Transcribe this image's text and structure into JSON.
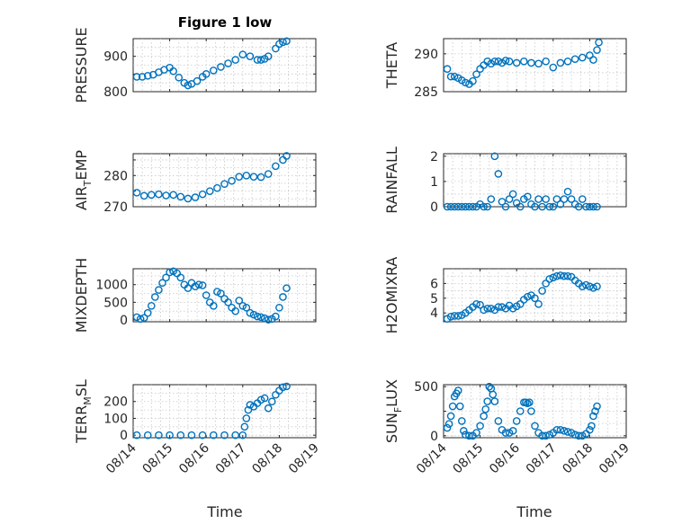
{
  "figure": {
    "title": "Figure 1 low",
    "xlabel": "Time"
  },
  "colors": {
    "marker": "#0072bd",
    "axes": "#262626",
    "grid": "#c8c8c8",
    "background": "#ffffff"
  },
  "x_axis": {
    "ticks": [
      "08/14",
      "08/15",
      "08/16",
      "08/17",
      "08/18",
      "08/19"
    ]
  },
  "chart_data": [
    {
      "type": "scatter",
      "ylabel": "PRESSURE",
      "ylim": [
        800,
        950
      ],
      "yticks": [
        800,
        850,
        900
      ],
      "ytick_labels": [
        "800",
        "",
        "900"
      ],
      "xlim": [
        0,
        5
      ],
      "grid": true,
      "x": [
        0.1,
        0.25,
        0.4,
        0.55,
        0.7,
        0.85,
        1.0,
        1.1,
        1.25,
        1.4,
        1.5,
        1.6,
        1.75,
        1.9,
        2.0,
        2.2,
        2.4,
        2.6,
        2.8,
        3.0,
        3.2,
        3.4,
        3.5,
        3.6,
        3.7,
        3.9,
        4.0,
        4.1,
        4.2
      ],
      "y": [
        842,
        842,
        845,
        848,
        855,
        862,
        868,
        858,
        840,
        825,
        818,
        822,
        830,
        842,
        850,
        860,
        870,
        880,
        890,
        905,
        900,
        890,
        890,
        893,
        900,
        922,
        935,
        940,
        943
      ]
    },
    {
      "type": "scatter",
      "ylabel": "AIR_TEMP",
      "ylim": [
        270,
        287
      ],
      "yticks": [
        270,
        275,
        280,
        285
      ],
      "ytick_labels": [
        "270",
        "",
        "280",
        ""
      ],
      "xlim": [
        0,
        5
      ],
      "grid": true,
      "x": [
        0.1,
        0.3,
        0.5,
        0.7,
        0.9,
        1.1,
        1.3,
        1.5,
        1.7,
        1.9,
        2.1,
        2.3,
        2.5,
        2.7,
        2.9,
        3.1,
        3.3,
        3.5,
        3.7,
        3.9,
        4.1,
        4.2
      ],
      "y": [
        274.5,
        273.5,
        273.8,
        274,
        273.6,
        273.8,
        273.2,
        272.6,
        273,
        274,
        275,
        276,
        277.3,
        278.3,
        279.6,
        280,
        279.6,
        279.5,
        280.5,
        283,
        285,
        286.3
      ]
    },
    {
      "type": "scatter",
      "ylabel": "MIXDEPTH",
      "ylim": [
        -50,
        1450
      ],
      "yticks": [
        0,
        500,
        1000
      ],
      "ytick_labels": [
        "0",
        "500",
        "1000"
      ],
      "xlim": [
        0,
        5
      ],
      "grid": true,
      "x": [
        0.1,
        0.2,
        0.3,
        0.4,
        0.5,
        0.6,
        0.7,
        0.8,
        0.9,
        1.0,
        1.1,
        1.2,
        1.3,
        1.4,
        1.5,
        1.6,
        1.7,
        1.8,
        1.9,
        2.0,
        2.1,
        2.2,
        2.3,
        2.4,
        2.5,
        2.6,
        2.7,
        2.8,
        2.9,
        3.0,
        3.1,
        3.2,
        3.3,
        3.4,
        3.5,
        3.6,
        3.7,
        3.8,
        3.9,
        4.0,
        4.1,
        4.2
      ],
      "y": [
        80,
        30,
        60,
        200,
        400,
        650,
        850,
        1050,
        1200,
        1350,
        1380,
        1320,
        1200,
        1000,
        900,
        1050,
        950,
        1000,
        980,
        700,
        500,
        400,
        800,
        750,
        600,
        500,
        350,
        250,
        550,
        400,
        350,
        200,
        150,
        100,
        80,
        50,
        10,
        30,
        100,
        350,
        650,
        900
      ]
    },
    {
      "type": "scatter",
      "ylabel": "TERR_MSL",
      "ylim": [
        -15,
        300
      ],
      "yticks": [
        0,
        100,
        200
      ],
      "ytick_labels": [
        "0",
        "100",
        "200"
      ],
      "xlim": [
        0,
        5
      ],
      "grid": true,
      "x": [
        0.1,
        0.4,
        0.7,
        1.0,
        1.3,
        1.6,
        1.9,
        2.2,
        2.5,
        2.8,
        3.0,
        3.05,
        3.1,
        3.15,
        3.2,
        3.3,
        3.4,
        3.5,
        3.6,
        3.7,
        3.8,
        3.9,
        4.0,
        4.1,
        4.2
      ],
      "y": [
        0,
        0,
        0,
        0,
        0,
        0,
        0,
        0,
        0,
        0,
        0,
        50,
        100,
        150,
        180,
        170,
        190,
        210,
        220,
        160,
        200,
        240,
        265,
        285,
        290
      ]
    },
    {
      "type": "scatter",
      "ylabel": "THETA",
      "ylim": [
        285,
        292
      ],
      "yticks": [
        285,
        290
      ],
      "ytick_labels": [
        "285",
        "290"
      ],
      "xlim": [
        0,
        5
      ],
      "grid": true,
      "x": [
        0.1,
        0.2,
        0.3,
        0.4,
        0.5,
        0.6,
        0.7,
        0.8,
        0.9,
        1.0,
        1.1,
        1.2,
        1.3,
        1.4,
        1.5,
        1.6,
        1.7,
        1.8,
        2.0,
        2.2,
        2.4,
        2.6,
        2.8,
        3.0,
        3.2,
        3.4,
        3.6,
        3.8,
        4.0,
        4.1,
        4.2,
        4.25
      ],
      "y": [
        288,
        287,
        287,
        286.8,
        286.5,
        286.2,
        286,
        286.4,
        287.3,
        288,
        288.5,
        289,
        288.7,
        289,
        289,
        288.8,
        289.1,
        289,
        288.8,
        289,
        288.8,
        288.7,
        289,
        288.2,
        288.8,
        289,
        289.3,
        289.5,
        289.8,
        289.2,
        290.5,
        291.5
      ]
    },
    {
      "type": "scatter",
      "ylabel": "RAINFALL",
      "ylim": [
        0,
        2.1
      ],
      "yticks": [
        0,
        1,
        2
      ],
      "ytick_labels": [
        "0",
        "1",
        "2"
      ],
      "xlim": [
        0,
        5
      ],
      "grid": true,
      "x": [
        0.1,
        0.2,
        0.3,
        0.4,
        0.5,
        0.6,
        0.7,
        0.8,
        0.9,
        1.0,
        1.1,
        1.2,
        1.3,
        1.4,
        1.5,
        1.6,
        1.7,
        1.8,
        1.9,
        2.0,
        2.1,
        2.2,
        2.3,
        2.4,
        2.5,
        2.6,
        2.7,
        2.8,
        2.9,
        3.0,
        3.1,
        3.2,
        3.3,
        3.4,
        3.5,
        3.6,
        3.7,
        3.8,
        3.9,
        4.0,
        4.1,
        4.2
      ],
      "y": [
        0,
        0,
        0,
        0,
        0,
        0,
        0,
        0,
        0,
        0.1,
        0,
        0,
        0.3,
        2.0,
        1.3,
        0.2,
        0,
        0.3,
        0.5,
        0.15,
        0,
        0.3,
        0.4,
        0.1,
        0,
        0.3,
        0,
        0.3,
        0,
        0,
        0.3,
        0.1,
        0.3,
        0.6,
        0.3,
        0.1,
        0,
        0.3,
        0,
        0,
        0,
        0
      ]
    },
    {
      "type": "scatter",
      "ylabel": "H2OMIXRA",
      "ylim": [
        3.4,
        7.0
      ],
      "yticks": [
        4,
        5,
        6
      ],
      "ytick_labels": [
        "4",
        "5",
        "6"
      ],
      "xlim": [
        0,
        5
      ],
      "grid": true,
      "x": [
        0.1,
        0.2,
        0.3,
        0.4,
        0.5,
        0.6,
        0.7,
        0.8,
        0.9,
        1.0,
        1.1,
        1.2,
        1.3,
        1.4,
        1.5,
        1.6,
        1.7,
        1.8,
        1.9,
        2.0,
        2.1,
        2.2,
        2.3,
        2.4,
        2.5,
        2.6,
        2.7,
        2.8,
        2.9,
        3.0,
        3.1,
        3.2,
        3.3,
        3.4,
        3.5,
        3.6,
        3.7,
        3.8,
        3.9,
        4.0,
        4.1,
        4.2
      ],
      "y": [
        3.6,
        3.75,
        3.8,
        3.8,
        3.85,
        4.0,
        4.2,
        4.4,
        4.6,
        4.55,
        4.2,
        4.3,
        4.3,
        4.2,
        4.4,
        4.4,
        4.3,
        4.5,
        4.3,
        4.45,
        4.6,
        4.9,
        5.1,
        5.2,
        5.0,
        4.6,
        5.5,
        6.0,
        6.3,
        6.4,
        6.5,
        6.55,
        6.5,
        6.5,
        6.45,
        6.2,
        6.0,
        5.8,
        5.9,
        5.8,
        5.7,
        5.8
      ]
    },
    {
      "type": "scatter",
      "ylabel": "SUN_FLUX",
      "ylim": [
        -20,
        520
      ],
      "yticks": [
        0,
        250,
        500
      ],
      "ytick_labels": [
        "0",
        "",
        "500"
      ],
      "xlim": [
        0,
        5
      ],
      "grid": true,
      "x": [
        0.1,
        0.15,
        0.2,
        0.25,
        0.3,
        0.35,
        0.4,
        0.45,
        0.5,
        0.55,
        0.6,
        0.7,
        0.8,
        0.9,
        1.0,
        1.1,
        1.15,
        1.2,
        1.25,
        1.3,
        1.35,
        1.4,
        1.5,
        1.6,
        1.7,
        1.8,
        1.9,
        2.0,
        2.1,
        2.2,
        2.25,
        2.3,
        2.35,
        2.4,
        2.5,
        2.6,
        2.7,
        2.8,
        2.9,
        3.0,
        3.1,
        3.2,
        3.3,
        3.4,
        3.5,
        3.6,
        3.7,
        3.8,
        3.9,
        4.0,
        4.05,
        4.1,
        4.15,
        4.2
      ],
      "y": [
        80,
        120,
        200,
        300,
        400,
        430,
        460,
        300,
        150,
        50,
        10,
        0,
        0,
        30,
        100,
        200,
        270,
        350,
        500,
        480,
        420,
        350,
        150,
        60,
        30,
        30,
        50,
        150,
        250,
        340,
        340,
        330,
        340,
        250,
        100,
        30,
        0,
        0,
        10,
        30,
        60,
        60,
        50,
        40,
        30,
        10,
        0,
        0,
        20,
        60,
        100,
        200,
        250,
        300
      ]
    }
  ]
}
